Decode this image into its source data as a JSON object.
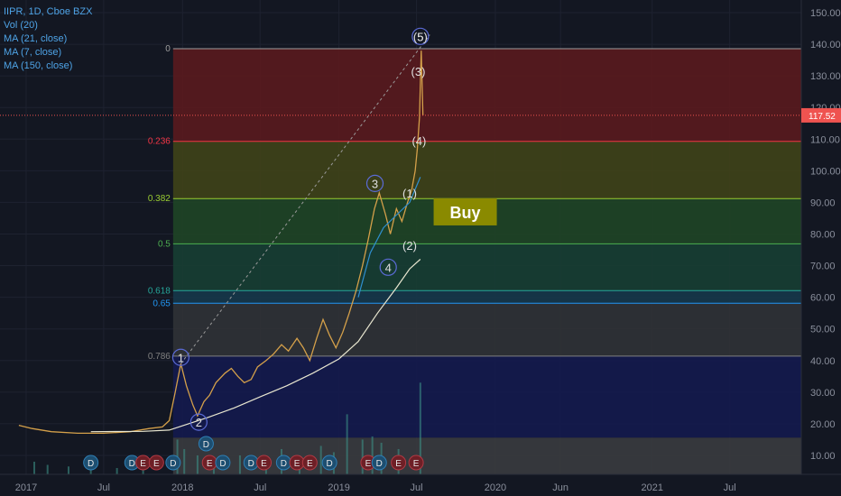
{
  "legend": {
    "symbol": "IIPR, 1D, Cboe BZX",
    "studies": [
      "Vol (20)",
      "MA (21, close)",
      "MA (7, close)",
      "MA (150, close)"
    ]
  },
  "price_tag": "117.52",
  "colors": {
    "background": "#131722",
    "price_line": "#ef5350",
    "ma150": "#e8e6d0",
    "ma_short": "#2f8fd0",
    "buy_box": "#8a8a00"
  },
  "chart_data": {
    "type": "line",
    "title": "IIPR, 1D, Cboe BZX",
    "xlabel": "",
    "ylabel": "",
    "y_ticks": [
      "10.00",
      "20.00",
      "30.00",
      "40.00",
      "50.00",
      "60.00",
      "70.00",
      "80.00",
      "90.00",
      "100.00",
      "110.00",
      "120.00",
      "130.00",
      "140.00",
      "150.00"
    ],
    "ylim": [
      4,
      154
    ],
    "xlim": [
      "2016-11-01",
      "2021-12-15"
    ],
    "x_ticks": [
      {
        "label": "2017",
        "date": "2017-01-01"
      },
      {
        "label": "Jul",
        "date": "2017-07-01"
      },
      {
        "label": "2018",
        "date": "2018-01-01"
      },
      {
        "label": "Jul",
        "date": "2018-07-01"
      },
      {
        "label": "2019",
        "date": "2019-01-01"
      },
      {
        "label": "Jul",
        "date": "2019-07-01"
      },
      {
        "label": "2020",
        "date": "2020-01-01"
      },
      {
        "label": "Jun",
        "date": "2020-06-01"
      },
      {
        "label": "2021",
        "date": "2021-01-01"
      },
      {
        "label": "Jul",
        "date": "2021-07-01"
      }
    ],
    "series": [
      {
        "name": "IIPR",
        "points": [
          [
            "2016-12-15",
            19.5
          ],
          [
            "2017-01-15",
            18.5
          ],
          [
            "2017-03-01",
            17.5
          ],
          [
            "2017-05-01",
            17.0
          ],
          [
            "2017-07-01",
            17.0
          ],
          [
            "2017-09-01",
            17.5
          ],
          [
            "2017-10-15",
            18.5
          ],
          [
            "2017-11-15",
            19.0
          ],
          [
            "2017-12-01",
            21.0
          ],
          [
            "2017-12-15",
            30.0
          ],
          [
            "2017-12-28",
            39.0
          ],
          [
            "2018-01-10",
            32.0
          ],
          [
            "2018-01-25",
            26.0
          ],
          [
            "2018-02-05",
            22.5
          ],
          [
            "2018-02-20",
            27.0
          ],
          [
            "2018-03-05",
            29.0
          ],
          [
            "2018-03-20",
            33.0
          ],
          [
            "2018-04-10",
            36.0
          ],
          [
            "2018-04-25",
            37.5
          ],
          [
            "2018-05-10",
            35.0
          ],
          [
            "2018-05-25",
            33.0
          ],
          [
            "2018-06-10",
            34.0
          ],
          [
            "2018-06-25",
            38.0
          ],
          [
            "2018-07-15",
            40.0
          ],
          [
            "2018-08-01",
            42.0
          ],
          [
            "2018-08-20",
            45.0
          ],
          [
            "2018-09-05",
            43.0
          ],
          [
            "2018-09-25",
            47.0
          ],
          [
            "2018-10-10",
            44.0
          ],
          [
            "2018-10-25",
            40.0
          ],
          [
            "2018-11-10",
            47.0
          ],
          [
            "2018-11-25",
            53.0
          ],
          [
            "2018-12-10",
            48.0
          ],
          [
            "2018-12-25",
            44.0
          ],
          [
            "2019-01-10",
            49.0
          ],
          [
            "2019-01-25",
            55.0
          ],
          [
            "2019-02-10",
            62.0
          ],
          [
            "2019-02-25",
            70.0
          ],
          [
            "2019-03-10",
            78.0
          ],
          [
            "2019-03-25",
            88.0
          ],
          [
            "2019-04-05",
            93.0
          ],
          [
            "2019-04-20",
            86.0
          ],
          [
            "2019-05-01",
            80.0
          ],
          [
            "2019-05-15",
            88.0
          ],
          [
            "2019-05-28",
            84.0
          ],
          [
            "2019-06-10",
            90.0
          ],
          [
            "2019-06-20",
            94.0
          ],
          [
            "2019-06-28",
            100.0
          ],
          [
            "2019-07-03",
            107.0
          ],
          [
            "2019-07-08",
            117.0
          ],
          [
            "2019-07-12",
            138.0
          ],
          [
            "2019-07-16",
            117.52
          ]
        ]
      },
      {
        "name": "MA (150, close)",
        "points": [
          [
            "2017-06-01",
            17.5
          ],
          [
            "2017-10-01",
            17.6
          ],
          [
            "2017-12-01",
            18.0
          ],
          [
            "2018-01-15",
            20.0
          ],
          [
            "2018-03-01",
            22.0
          ],
          [
            "2018-05-01",
            25.0
          ],
          [
            "2018-07-01",
            28.5
          ],
          [
            "2018-09-01",
            32.0
          ],
          [
            "2018-11-01",
            36.0
          ],
          [
            "2019-01-01",
            40.5
          ],
          [
            "2019-02-15",
            46.0
          ],
          [
            "2019-04-01",
            55.0
          ],
          [
            "2019-05-15",
            63.0
          ],
          [
            "2019-06-15",
            69.0
          ],
          [
            "2019-07-10",
            72.0
          ]
        ]
      },
      {
        "name": "MA (21, close)",
        "points": [
          [
            "2019-02-15",
            60.0
          ],
          [
            "2019-03-15",
            74.0
          ],
          [
            "2019-04-15",
            82.0
          ],
          [
            "2019-05-15",
            86.0
          ],
          [
            "2019-06-15",
            90.0
          ],
          [
            "2019-07-10",
            98.0
          ]
        ]
      }
    ],
    "volume_bars": [
      [
        "2017-01-20",
        4
      ],
      [
        "2017-02-20",
        3
      ],
      [
        "2017-04-10",
        2.5
      ],
      [
        "2017-06-01",
        2
      ],
      [
        "2017-08-01",
        2
      ],
      [
        "2017-10-01",
        2.5
      ],
      [
        "2017-12-20",
        11
      ],
      [
        "2018-01-05",
        8
      ],
      [
        "2018-02-05",
        6
      ],
      [
        "2018-03-15",
        5
      ],
      [
        "2018-05-15",
        6
      ],
      [
        "2018-07-15",
        5
      ],
      [
        "2018-08-20",
        8
      ],
      [
        "2018-10-01",
        6
      ],
      [
        "2018-11-20",
        9
      ],
      [
        "2018-12-20",
        7
      ],
      [
        "2019-01-20",
        19
      ],
      [
        "2019-02-25",
        11
      ],
      [
        "2019-03-20",
        12
      ],
      [
        "2019-04-10",
        10
      ],
      [
        "2019-05-20",
        8
      ],
      [
        "2019-07-10",
        29
      ]
    ],
    "fibonacci": {
      "levels": [
        {
          "ratio": "0",
          "price": 138.6,
          "color": "#9e9e9e"
        },
        {
          "ratio": "0.236",
          "price": 109.3,
          "color": "#f23645"
        },
        {
          "ratio": "0.382",
          "price": 91.2,
          "color": "#9acd32"
        },
        {
          "ratio": "0.5",
          "price": 76.9,
          "color": "#4caf50"
        },
        {
          "ratio": "0.618",
          "price": 62.1,
          "color": "#26a69a"
        },
        {
          "ratio": "0.65",
          "price": 58.1,
          "color": "#2196f3"
        },
        {
          "ratio": "0.786",
          "price": 41.4,
          "color": "#808080"
        }
      ],
      "zones": [
        {
          "from": 138.6,
          "to": 109.3,
          "color": "#5a1a1e"
        },
        {
          "from": 109.3,
          "to": 91.2,
          "color": "#3f4318"
        },
        {
          "from": 91.2,
          "to": 76.9,
          "color": "#1f4526"
        },
        {
          "from": 76.9,
          "to": 62.1,
          "color": "#173e33"
        },
        {
          "from": 62.1,
          "to": 58.1,
          "color": "#16374a"
        },
        {
          "from": 58.1,
          "to": 41.4,
          "color": "#303236"
        },
        {
          "from": 41.4,
          "to": 15.6,
          "color": "#141a4e"
        },
        {
          "from": 15.6,
          "to": 4.0,
          "color": "#3a3b3f"
        }
      ],
      "start_date": "2017-12-10",
      "end_date": "2021-12-15"
    },
    "trendline": {
      "from": [
        "2017-12-28",
        39.0
      ],
      "to": [
        "2019-08-01",
        143.0
      ]
    },
    "buy_label": {
      "text": "Buy",
      "date": "2019-08-10",
      "price": 87.0
    },
    "wave_labels": [
      {
        "text": "1",
        "date": "2017-12-28",
        "price": 41.0,
        "circled": true
      },
      {
        "text": "2",
        "date": "2018-02-08",
        "price": 20.5,
        "circled": true
      },
      {
        "text": "3",
        "date": "2019-03-26",
        "price": 96.0,
        "circled": true
      },
      {
        "text": "4",
        "date": "2019-04-26",
        "price": 69.5,
        "circled": true
      },
      {
        "text": "5",
        "date": "2019-07-10",
        "price": 142.5,
        "circled": true
      },
      {
        "text": "(5)",
        "date": "2019-07-10",
        "price": 142.5,
        "circled": false
      },
      {
        "text": "(3)",
        "date": "2019-07-05",
        "price": 131.5,
        "circled": false
      },
      {
        "text": "(4)",
        "date": "2019-07-07",
        "price": 109.5,
        "circled": false
      },
      {
        "text": "(1)",
        "date": "2019-06-15",
        "price": 93.0,
        "circled": false
      },
      {
        "text": "(2)",
        "date": "2019-06-15",
        "price": 76.5,
        "circled": false
      }
    ],
    "events": [
      {
        "type": "D",
        "date": "2017-06-01"
      },
      {
        "type": "D",
        "date": "2017-09-05"
      },
      {
        "type": "E",
        "date": "2017-10-01"
      },
      {
        "type": "E",
        "date": "2017-11-01"
      },
      {
        "type": "D",
        "date": "2017-12-10"
      },
      {
        "type": "E",
        "date": "2018-03-05"
      },
      {
        "type": "D",
        "date": "2018-04-05"
      },
      {
        "type": "D",
        "date": "2018-06-10"
      },
      {
        "type": "E",
        "date": "2018-07-10"
      },
      {
        "type": "D",
        "date": "2018-08-25"
      },
      {
        "type": "E",
        "date": "2018-09-25"
      },
      {
        "type": "E",
        "date": "2018-10-25"
      },
      {
        "type": "D",
        "date": "2018-12-10"
      },
      {
        "type": "E",
        "date": "2019-03-10"
      },
      {
        "type": "D",
        "date": "2019-04-05"
      },
      {
        "type": "E",
        "date": "2019-05-20"
      },
      {
        "type": "E",
        "date": "2019-06-30"
      }
    ],
    "event_D_extra": {
      "type": "D",
      "date": "2018-02-25"
    }
  }
}
